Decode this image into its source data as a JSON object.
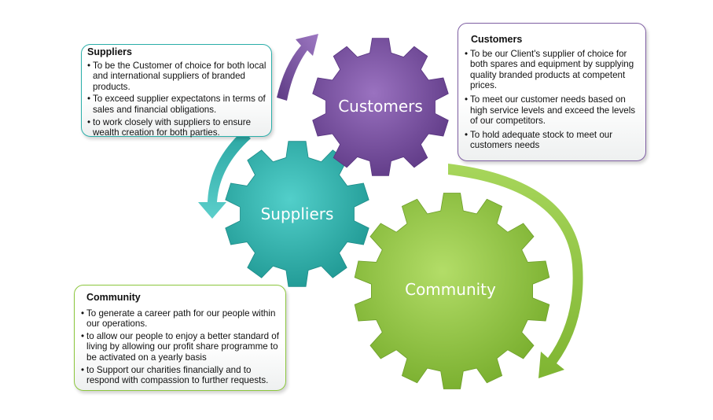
{
  "gears": [
    {
      "id": "customers",
      "label": "Customers",
      "color": "#7a4fa0"
    },
    {
      "id": "suppliers",
      "label": "Suppliers",
      "color": "#2eb3b0"
    },
    {
      "id": "community",
      "label": "Community",
      "color": "#92c83e"
    }
  ],
  "boxes": {
    "suppliers": {
      "title": "Suppliers",
      "items": [
        "To be the Customer of choice for both local and international suppliers of branded products.",
        "To exceed supplier expectatons in terms of sales and financial obligations.",
        "to work closely with suppliers to ensure wealth creation for both parties."
      ]
    },
    "customers": {
      "title": "Customers",
      "items": [
        "To be our Client's supplier of choice for both spares and equipment by supplying quality branded products at competent prices.",
        "To meet our customer needs based on high service levels and exceed the levels of our competitors.",
        "To hold adequate stock to meet our customers needs"
      ]
    },
    "community": {
      "title": "Community",
      "items": [
        "To generate a career path for our people within our operations.",
        "to allow our people to enjoy a better standard of living by allowing our profit share programme to be activated on a yearly basis",
        "to Support our charities financially and to respond with compassion to further requests."
      ]
    }
  }
}
